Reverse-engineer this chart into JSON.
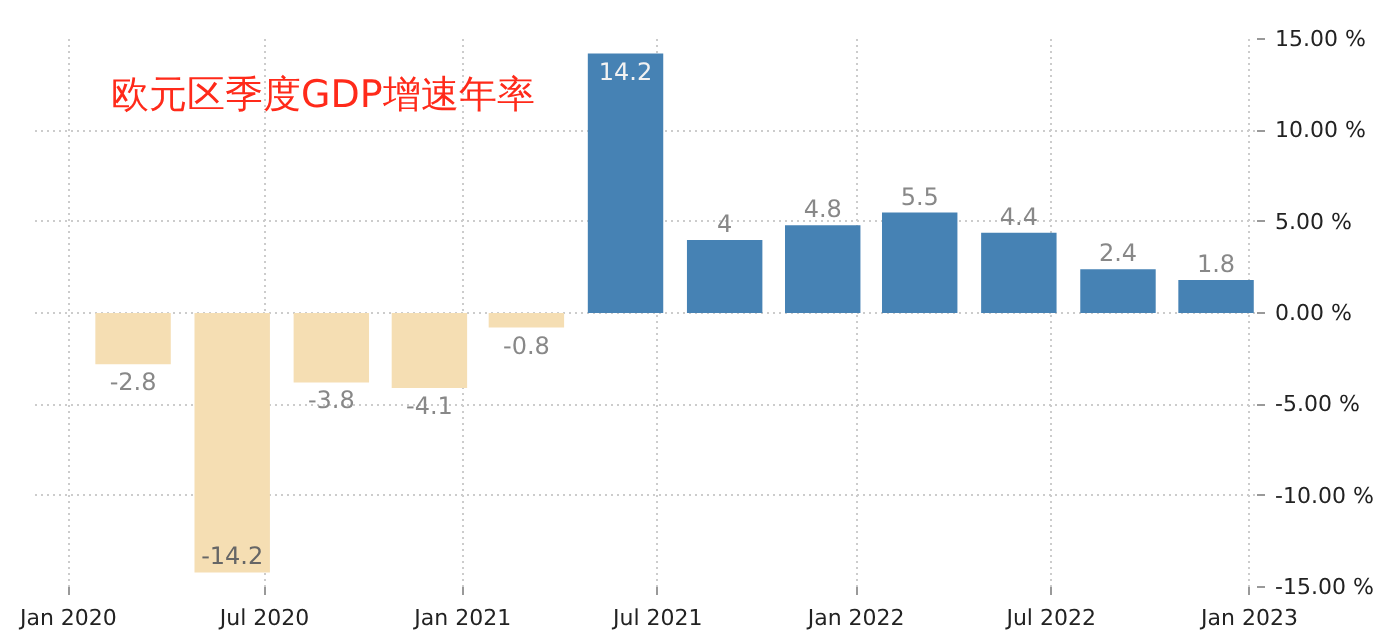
{
  "chart_data": {
    "type": "bar",
    "title": "欧元区季度GDP增速年率",
    "x": [
      "2020-03",
      "2020-06",
      "2020-09",
      "2020-12",
      "2021-03",
      "2021-06",
      "2021-09",
      "2021-12",
      "2022-03",
      "2022-06",
      "2022-09",
      "2022-12"
    ],
    "values": [
      -2.8,
      -14.2,
      -3.8,
      -4.1,
      -0.8,
      14.2,
      4,
      4.8,
      5.5,
      4.4,
      2.4,
      1.8
    ],
    "colors": [
      "#f5deb3",
      "#f5deb3",
      "#f5deb3",
      "#f5deb3",
      "#f5deb3",
      "#4682b4",
      "#4682b4",
      "#4682b4",
      "#4682b4",
      "#4682b4",
      "#4682b4",
      "#4682b4"
    ],
    "data_labels": true,
    "xlim": [
      "2019-12",
      "2023-01-08"
    ],
    "xticks": [
      {
        "value": "2020-01",
        "label": "Jan 2020"
      },
      {
        "value": "2020-07",
        "label": "Jul 2020"
      },
      {
        "value": "2021-01",
        "label": "Jan 2021"
      },
      {
        "value": "2021-07",
        "label": "Jul 2021"
      },
      {
        "value": "2022-01",
        "label": "Jan 2022"
      },
      {
        "value": "2022-07",
        "label": "Jul 2022"
      },
      {
        "value": "2023-01",
        "label": "Jan 2023"
      }
    ],
    "ylim": [
      -15,
      15
    ],
    "yticks": [
      {
        "value": 15,
        "label": "15.00 %"
      },
      {
        "value": 10,
        "label": "10.00 %"
      },
      {
        "value": 5,
        "label": "5.00 %"
      },
      {
        "value": 0,
        "label": "0.00 %"
      },
      {
        "value": -5,
        "label": "-5.00 %"
      },
      {
        "value": -10,
        "label": "-10.00 %"
      },
      {
        "value": -15,
        "label": "-15.00 %"
      }
    ],
    "grid": true
  }
}
